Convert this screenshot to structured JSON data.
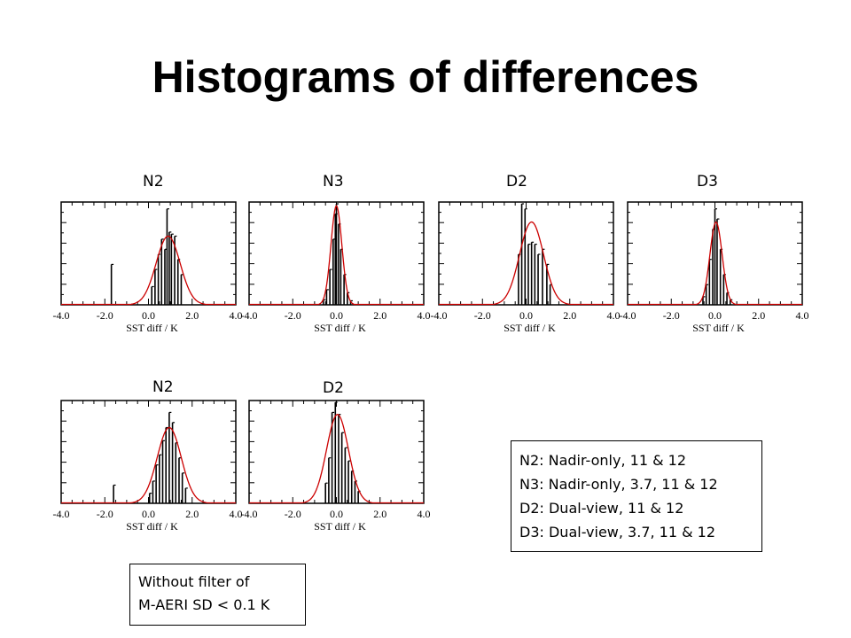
{
  "title": "Histograms of differences",
  "legend": [
    "N2: Nadir-only, 11 & 12",
    "N3: Nadir-only, 3.7, 11 & 12",
    "D2: Dual-view, 11 & 12",
    "D3: Dual-view, 3.7, 11 & 12"
  ],
  "note": [
    "Without filter of",
    "M-AERI SD < 0.1 K"
  ],
  "colors": {
    "histogram": "#000000",
    "gaussian_fit": "#cc0000"
  },
  "chart_data": [
    {
      "label": "N2",
      "type": "histogram",
      "xlabel": "SST diff / K",
      "xlim": [
        -4.0,
        4.0
      ],
      "xticks": [
        "-4.0",
        "-2.0",
        "0.0",
        "2.0",
        "4.0"
      ],
      "bins": [
        {
          "x": -1.7,
          "h": 0.4
        },
        {
          "x": 0.15,
          "h": 0.18
        },
        {
          "x": 0.3,
          "h": 0.35
        },
        {
          "x": 0.45,
          "h": 0.5
        },
        {
          "x": 0.6,
          "h": 0.65
        },
        {
          "x": 0.75,
          "h": 0.55
        },
        {
          "x": 0.85,
          "h": 0.95
        },
        {
          "x": 0.95,
          "h": 0.72
        },
        {
          "x": 1.05,
          "h": 0.7
        },
        {
          "x": 1.2,
          "h": 0.68
        },
        {
          "x": 1.35,
          "h": 0.45
        },
        {
          "x": 1.5,
          "h": 0.3
        }
      ],
      "gaussian": {
        "mean": 0.9,
        "sigma": 0.55,
        "peak": 0.68
      }
    },
    {
      "label": "N3",
      "type": "histogram",
      "xlabel": "SST diff / K",
      "xlim": [
        -4.0,
        4.0
      ],
      "xticks": [
        "-4.0",
        "-2.0",
        "0.0",
        "2.0",
        "4.0"
      ],
      "bins": [
        {
          "x": -0.6,
          "h": 0.05
        },
        {
          "x": -0.45,
          "h": 0.15
        },
        {
          "x": -0.3,
          "h": 0.35
        },
        {
          "x": -0.15,
          "h": 0.65
        },
        {
          "x": -0.05,
          "h": 0.9
        },
        {
          "x": 0.0,
          "h": 1.0
        },
        {
          "x": 0.1,
          "h": 0.8
        },
        {
          "x": 0.2,
          "h": 0.55
        },
        {
          "x": 0.35,
          "h": 0.3
        },
        {
          "x": 0.5,
          "h": 0.12
        },
        {
          "x": 0.65,
          "h": 0.04
        }
      ],
      "gaussian": {
        "mean": 0.0,
        "sigma": 0.25,
        "peak": 0.98
      }
    },
    {
      "label": "D2",
      "type": "histogram",
      "xlabel": "SST diff / K",
      "xlim": [
        -4.0,
        4.0
      ],
      "xticks": [
        "-4.0",
        "-2.0",
        "0.0",
        "2.0",
        "4.0"
      ],
      "bins": [
        {
          "x": -0.35,
          "h": 0.5
        },
        {
          "x": -0.2,
          "h": 1.0
        },
        {
          "x": -0.05,
          "h": 0.95
        },
        {
          "x": 0.1,
          "h": 0.6
        },
        {
          "x": 0.25,
          "h": 0.62
        },
        {
          "x": 0.4,
          "h": 0.6
        },
        {
          "x": 0.55,
          "h": 0.5
        },
        {
          "x": 0.75,
          "h": 0.55
        },
        {
          "x": 0.95,
          "h": 0.4
        },
        {
          "x": 1.1,
          "h": 0.2
        }
      ],
      "gaussian": {
        "mean": 0.25,
        "sigma": 0.55,
        "peak": 0.82
      }
    },
    {
      "label": "D3",
      "type": "histogram",
      "xlabel": "SST diff / K",
      "xlim": [
        -4.0,
        4.0
      ],
      "xticks": [
        "-4.0",
        "-2.0",
        "0.0",
        "2.0",
        "4.0"
      ],
      "bins": [
        {
          "x": -0.55,
          "h": 0.08
        },
        {
          "x": -0.4,
          "h": 0.2
        },
        {
          "x": -0.25,
          "h": 0.45
        },
        {
          "x": -0.1,
          "h": 0.75
        },
        {
          "x": 0.0,
          "h": 0.95
        },
        {
          "x": 0.1,
          "h": 0.85
        },
        {
          "x": 0.25,
          "h": 0.55
        },
        {
          "x": 0.4,
          "h": 0.3
        },
        {
          "x": 0.55,
          "h": 0.12
        },
        {
          "x": 0.7,
          "h": 0.05
        }
      ],
      "gaussian": {
        "mean": 0.05,
        "sigma": 0.28,
        "peak": 0.82
      }
    },
    {
      "label": "N2",
      "type": "histogram",
      "xlabel": "SST diff / K",
      "xlim": [
        -4.0,
        4.0
      ],
      "xticks": [
        "-4.0",
        "-2.0",
        "0.0",
        "2.0",
        "4.0"
      ],
      "bins": [
        {
          "x": -1.6,
          "h": 0.18
        },
        {
          "x": 0.05,
          "h": 0.1
        },
        {
          "x": 0.2,
          "h": 0.22
        },
        {
          "x": 0.35,
          "h": 0.38
        },
        {
          "x": 0.5,
          "h": 0.48
        },
        {
          "x": 0.65,
          "h": 0.62
        },
        {
          "x": 0.8,
          "h": 0.75
        },
        {
          "x": 0.95,
          "h": 0.9
        },
        {
          "x": 1.1,
          "h": 0.8
        },
        {
          "x": 1.25,
          "h": 0.6
        },
        {
          "x": 1.4,
          "h": 0.45
        },
        {
          "x": 1.55,
          "h": 0.3
        },
        {
          "x": 1.7,
          "h": 0.15
        }
      ],
      "gaussian": {
        "mean": 0.95,
        "sigma": 0.55,
        "peak": 0.75
      }
    },
    {
      "label": "D2",
      "type": "histogram",
      "xlabel": "SST diff / K",
      "xlim": [
        -4.0,
        4.0
      ],
      "xticks": [
        "-4.0",
        "-2.0",
        "0.0",
        "2.0",
        "4.0"
      ],
      "bins": [
        {
          "x": -0.5,
          "h": 0.2
        },
        {
          "x": -0.35,
          "h": 0.45
        },
        {
          "x": -0.2,
          "h": 0.9
        },
        {
          "x": -0.05,
          "h": 1.0
        },
        {
          "x": 0.1,
          "h": 0.88
        },
        {
          "x": 0.25,
          "h": 0.7
        },
        {
          "x": 0.4,
          "h": 0.55
        },
        {
          "x": 0.55,
          "h": 0.42
        },
        {
          "x": 0.7,
          "h": 0.32
        },
        {
          "x": 0.85,
          "h": 0.22
        },
        {
          "x": 1.0,
          "h": 0.12
        }
      ],
      "gaussian": {
        "mean": 0.05,
        "sigma": 0.5,
        "peak": 0.88
      }
    }
  ]
}
